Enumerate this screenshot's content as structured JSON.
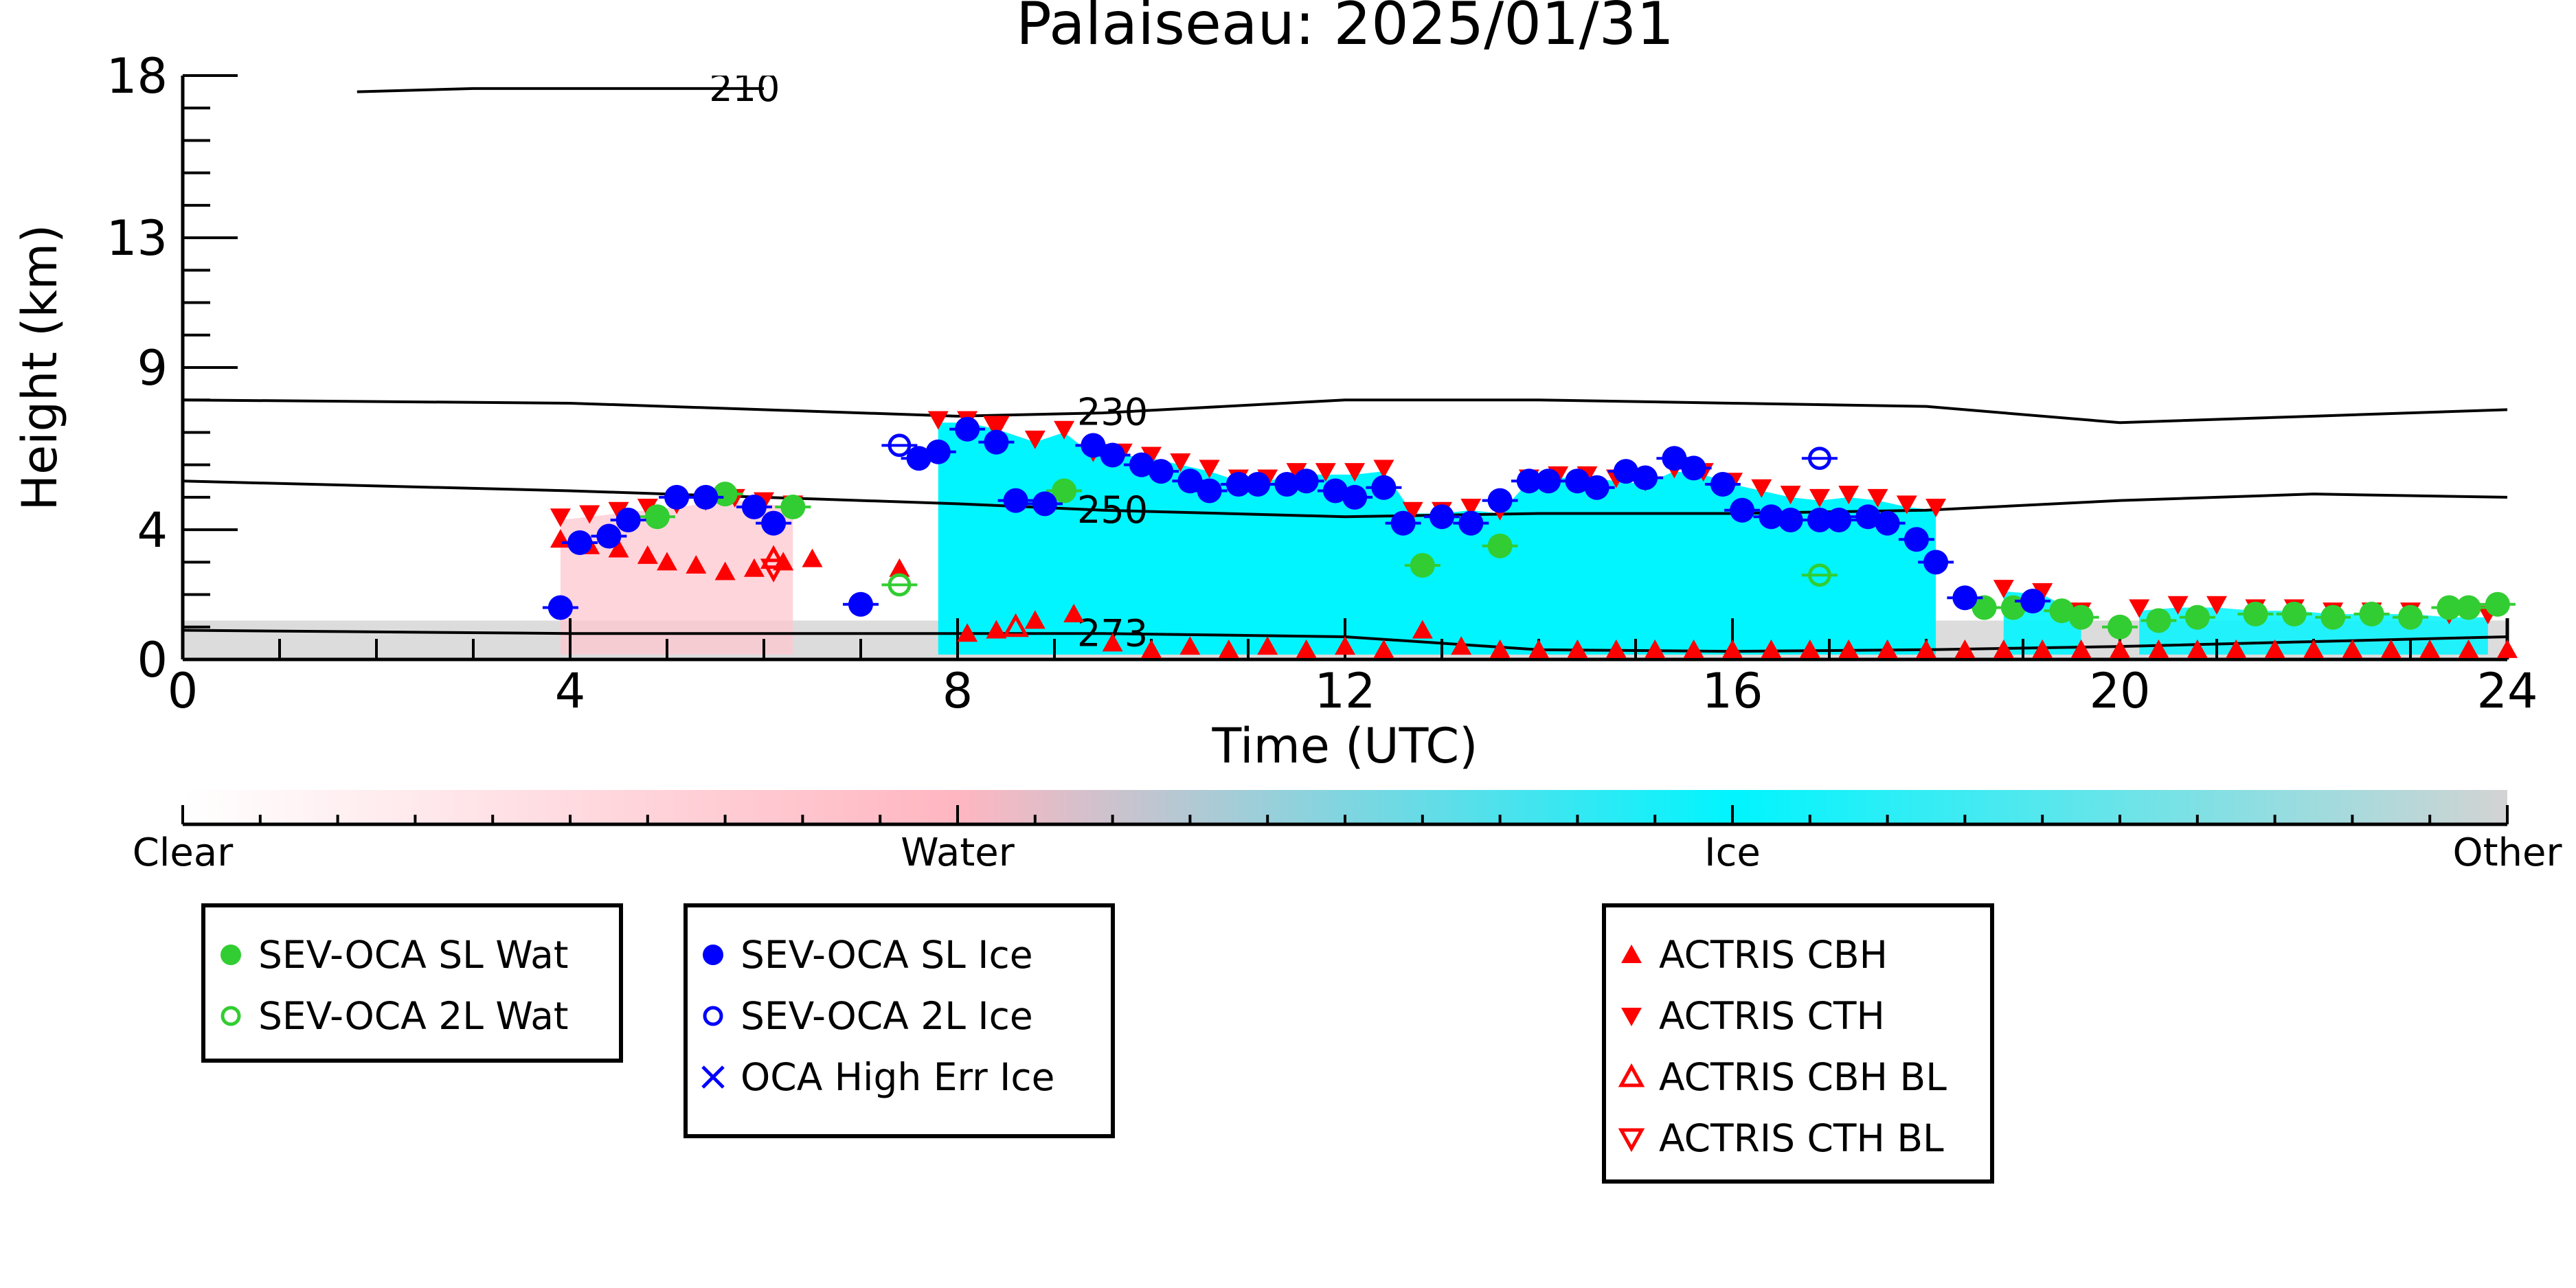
{
  "chart_data": {
    "type": "scatter",
    "title": "Palaiseau: 2025/01/31",
    "xlabel": "Time (UTC)",
    "ylabel": "Height (km)",
    "xlim": [
      0,
      24
    ],
    "ylim": [
      0,
      18
    ],
    "x_ticks": [
      0,
      4,
      8,
      12,
      16,
      20,
      24
    ],
    "y_ticks": [
      0,
      4,
      9,
      13,
      18
    ],
    "grid": false,
    "colorbar": {
      "labels": [
        "Clear",
        "Water",
        "Ice",
        "Other"
      ],
      "colors": [
        "#ffffff",
        "#ffb6c1",
        "#00f5ff",
        "#d3d3d3"
      ]
    },
    "isotherms": [
      {
        "label": "210",
        "x": [
          1.8,
          3.0,
          6.0
        ],
        "y": [
          17.5,
          17.6,
          17.6
        ]
      },
      {
        "label": "230",
        "x": [
          0,
          4,
          8,
          9.5,
          12,
          14,
          16,
          18,
          20,
          22,
          24
        ],
        "y": [
          8.0,
          7.9,
          7.5,
          7.6,
          8.0,
          8.0,
          7.9,
          7.8,
          7.3,
          7.5,
          7.7
        ]
      },
      {
        "label": "250",
        "x": [
          0,
          4,
          8,
          9.5,
          12,
          14,
          16,
          18,
          20,
          22,
          24
        ],
        "y": [
          5.5,
          5.2,
          4.8,
          4.6,
          4.4,
          4.5,
          4.5,
          4.6,
          4.9,
          5.1,
          5.0
        ]
      },
      {
        "label": "273",
        "x": [
          0,
          4,
          8,
          9.5,
          12,
          14,
          16,
          18,
          20,
          22,
          24
        ],
        "y": [
          0.9,
          0.8,
          0.8,
          0.8,
          0.7,
          0.3,
          0.25,
          0.3,
          0.4,
          0.55,
          0.7
        ]
      }
    ],
    "series": [
      {
        "name": "SEV-OCA SL Wat",
        "color": "#32cd32",
        "marker": "circle-filled",
        "x": [
          4.9,
          5.6,
          6.3,
          9.1,
          12.8,
          13.6,
          18.6,
          18.9,
          19.4,
          19.6,
          20.0,
          20.4,
          20.8,
          21.4,
          21.8,
          22.2,
          22.6,
          23.0,
          23.4,
          23.6,
          23.9
        ],
        "y": [
          4.4,
          5.1,
          4.7,
          5.2,
          2.9,
          3.5,
          1.6,
          1.6,
          1.5,
          1.3,
          1.0,
          1.2,
          1.3,
          1.4,
          1.4,
          1.3,
          1.4,
          1.3,
          1.6,
          1.6,
          1.7
        ]
      },
      {
        "name": "SEV-OCA 2L Wat",
        "color": "#32cd32",
        "marker": "circle-open",
        "x": [
          7.4,
          16.9
        ],
        "y": [
          2.3,
          2.6
        ]
      },
      {
        "name": "SEV-OCA SL Ice",
        "color": "#0000ff",
        "marker": "circle-filled",
        "x": [
          3.9,
          4.1,
          4.4,
          4.6,
          5.1,
          5.4,
          5.9,
          6.1,
          7.0,
          7.6,
          7.8,
          8.1,
          8.4,
          8.6,
          8.9,
          9.4,
          9.6,
          9.9,
          10.1,
          10.4,
          10.6,
          10.9,
          11.1,
          11.4,
          11.6,
          11.9,
          12.1,
          12.4,
          12.6,
          13.0,
          13.3,
          13.6,
          13.9,
          14.1,
          14.4,
          14.6,
          14.9,
          15.1,
          15.4,
          15.6,
          15.9,
          16.1,
          16.4,
          16.6,
          16.9,
          17.1,
          17.4,
          17.6,
          17.9,
          18.1,
          18.4,
          19.1
        ],
        "y": [
          1.6,
          3.6,
          3.8,
          4.3,
          5.0,
          5.0,
          4.7,
          4.2,
          1.7,
          6.2,
          6.4,
          7.1,
          6.7,
          4.9,
          4.8,
          6.6,
          6.3,
          6.0,
          5.8,
          5.5,
          5.2,
          5.4,
          5.4,
          5.4,
          5.5,
          5.2,
          5.0,
          5.3,
          4.2,
          4.4,
          4.2,
          4.9,
          5.5,
          5.5,
          5.5,
          5.3,
          5.8,
          5.6,
          6.2,
          5.9,
          5.4,
          4.6,
          4.4,
          4.3,
          4.3,
          4.3,
          4.4,
          4.2,
          3.7,
          3.0,
          1.9,
          1.8
        ]
      },
      {
        "name": "SEV-OCA 2L Ice",
        "color": "#0000ff",
        "marker": "circle-open",
        "x": [
          7.4,
          16.9
        ],
        "y": [
          6.6,
          6.2
        ]
      },
      {
        "name": "ACTRIS CBH",
        "color": "#ff0000",
        "marker": "triangle-up",
        "x": [
          3.9,
          4.2,
          4.5,
          4.8,
          5.0,
          5.3,
          5.6,
          5.9,
          6.2,
          6.5,
          7.4,
          8.1,
          8.4,
          8.8,
          9.2,
          9.6,
          10.0,
          10.4,
          10.8,
          11.2,
          11.6,
          12.0,
          12.4,
          12.8,
          13.2,
          13.6,
          14.0,
          14.4,
          14.8,
          15.2,
          15.6,
          16.0,
          16.4,
          16.8,
          17.2,
          17.6,
          18.0,
          18.4,
          18.8,
          19.2,
          19.6,
          20.0,
          20.4,
          20.8,
          21.2,
          21.6,
          22.0,
          22.4,
          22.8,
          23.2,
          23.6,
          24.0
        ],
        "y": [
          3.7,
          3.5,
          3.4,
          3.2,
          3.0,
          2.9,
          2.7,
          2.8,
          3.0,
          3.1,
          2.8,
          0.8,
          0.9,
          1.2,
          1.4,
          0.5,
          0.3,
          0.4,
          0.3,
          0.4,
          0.3,
          0.4,
          0.3,
          0.9,
          0.4,
          0.3,
          0.3,
          0.3,
          0.3,
          0.3,
          0.3,
          0.3,
          0.3,
          0.3,
          0.3,
          0.3,
          0.3,
          0.3,
          0.3,
          0.3,
          0.3,
          0.3,
          0.3,
          0.3,
          0.3,
          0.3,
          0.3,
          0.3,
          0.3,
          0.3,
          0.3,
          0.3
        ]
      },
      {
        "name": "ACTRIS CTH",
        "color": "#ff0000",
        "marker": "triangle-down",
        "x": [
          3.9,
          4.2,
          4.5,
          4.8,
          5.1,
          5.4,
          5.7,
          6.0,
          6.3,
          7.8,
          8.1,
          8.4,
          8.8,
          9.1,
          9.4,
          9.7,
          10.0,
          10.3,
          10.6,
          10.9,
          11.2,
          11.5,
          11.8,
          12.1,
          12.4,
          12.7,
          13.0,
          13.3,
          13.6,
          13.9,
          14.2,
          14.5,
          14.8,
          15.1,
          15.4,
          15.7,
          16.0,
          16.3,
          16.6,
          16.9,
          17.2,
          17.5,
          17.8,
          18.1,
          18.8,
          19.2,
          19.6,
          20.2,
          20.6,
          21.0,
          21.4,
          21.8,
          22.2,
          22.6,
          23.0,
          23.4,
          23.8
        ],
        "y": [
          4.4,
          4.5,
          4.6,
          4.7,
          4.8,
          4.9,
          5.0,
          4.9,
          4.8,
          7.4,
          7.4,
          7.2,
          6.8,
          7.1,
          6.4,
          6.4,
          6.3,
          6.1,
          5.9,
          5.6,
          5.6,
          5.8,
          5.8,
          5.8,
          5.9,
          4.6,
          4.6,
          4.7,
          4.6,
          5.6,
          5.7,
          5.7,
          5.6,
          5.5,
          5.9,
          5.8,
          5.5,
          5.3,
          5.1,
          5.0,
          5.1,
          5.0,
          4.8,
          4.7,
          2.2,
          2.1,
          1.5,
          1.6,
          1.7,
          1.7,
          1.6,
          1.6,
          1.5,
          1.5,
          1.5,
          1.4,
          1.4
        ]
      },
      {
        "name": "ACTRIS CBH BL",
        "color": "#ff0000",
        "marker": "triangle-up-open",
        "x": [
          6.1,
          8.6
        ],
        "y": [
          3.1,
          1.0
        ]
      },
      {
        "name": "ACTRIS CTH BL",
        "color": "#ff0000",
        "marker": "triangle-down-open",
        "x": [
          6.1,
          8.4
        ],
        "y": [
          2.8,
          7.2
        ]
      },
      {
        "name": "OCA High Err Ice",
        "color": "#0000ff",
        "marker": "x",
        "x": [],
        "y": []
      }
    ],
    "legends": [
      [
        "SEV-OCA SL Wat",
        "SEV-OCA 2L Wat"
      ],
      [
        "SEV-OCA SL Ice",
        "SEV-OCA 2L Ice",
        "OCA High Err Ice"
      ],
      [
        "ACTRIS CBH",
        "ACTRIS CTH",
        "ACTRIS CBH BL",
        "ACTRIS CTH BL"
      ]
    ]
  }
}
